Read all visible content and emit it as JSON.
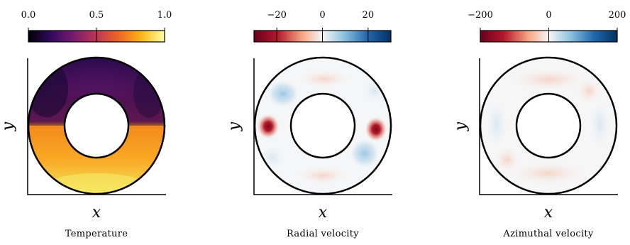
{
  "panels": [
    {
      "caption": "Temperature",
      "xlabel": "x",
      "ylabel": "y",
      "colorbar": {
        "colormap": "inferno",
        "ticks": [
          {
            "value": 0.0,
            "label": "0.0"
          },
          {
            "value": 0.5,
            "label": "0.5"
          },
          {
            "value": 1.0,
            "label": "1.0"
          }
        ],
        "range": [
          0.0,
          1.0
        ]
      }
    },
    {
      "caption": "Radial velocity",
      "xlabel": "x",
      "ylabel": "y",
      "colorbar": {
        "colormap": "diverging-red-white-blue",
        "ticks": [
          {
            "value": -20,
            "label": "−20"
          },
          {
            "value": 0,
            "label": "0"
          },
          {
            "value": 20,
            "label": "20"
          }
        ],
        "range": [
          -30,
          30
        ]
      }
    },
    {
      "caption": "Azimuthal velocity",
      "xlabel": "x",
      "ylabel": "y",
      "colorbar": {
        "colormap": "diverging-red-white-blue",
        "ticks": [
          {
            "value": -200,
            "label": "−200"
          },
          {
            "value": 0,
            "label": "0"
          },
          {
            "value": 200,
            "label": "200"
          }
        ],
        "range": [
          -200,
          200
        ]
      }
    }
  ],
  "colors": {
    "inferno": [
      "#000004",
      "#320a5e",
      "#781c6d",
      "#bc3754",
      "#ed6925",
      "#fbb61a",
      "#fcffa4"
    ],
    "diverging": [
      "#67001f",
      "#b2182b",
      "#f4a582",
      "#f7f7f7",
      "#92c5de",
      "#2166ac",
      "#053061"
    ]
  }
}
